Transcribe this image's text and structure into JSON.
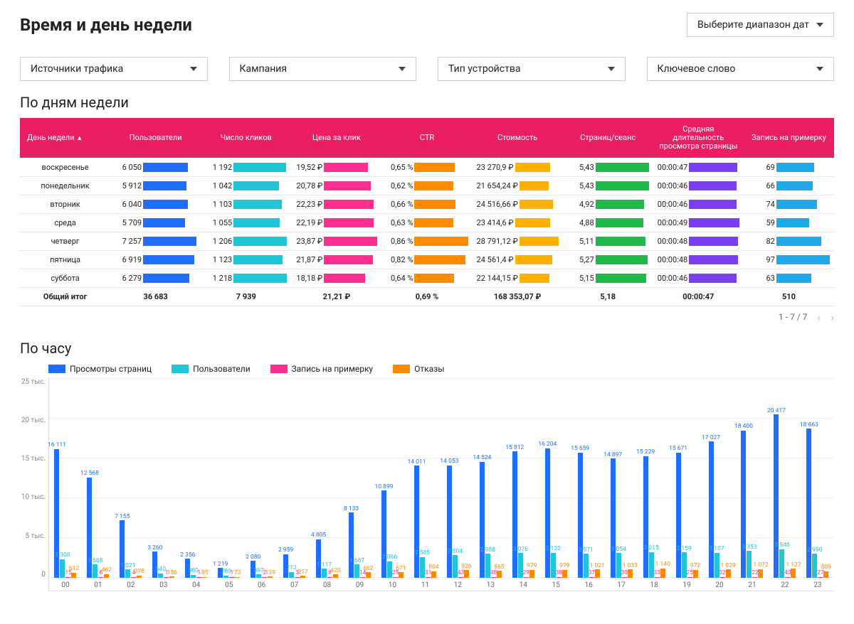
{
  "page_title": "Время и день недели",
  "date_picker_label": "Выберите диапазон дат",
  "filters": [
    {
      "label": "Источники трафика"
    },
    {
      "label": "Кампания"
    },
    {
      "label": "Тип устройства"
    },
    {
      "label": "Ключевое слово"
    }
  ],
  "week_section": {
    "title": "По дням недели",
    "header_bg": "#e91e63",
    "columns": [
      "День недели",
      "Пользователи",
      "Число кликов",
      "Цена за клик",
      "CTR",
      "Стоимость",
      "Страниц/сеанс",
      "Средняя длительность просмотра страницы",
      "Запись на примерку"
    ],
    "col_colors": [
      null,
      "#1e6fff",
      "#1fc6d6",
      "#ff2f92",
      "#ff8a00",
      "#ffb100",
      "#1fb94a",
      "#7b3ff0",
      "#1fa9e8"
    ],
    "col_max": [
      null,
      7257,
      1218,
      23.87,
      0.86,
      28791.12,
      5.43,
      49,
      97
    ],
    "rows": [
      {
        "day": "воскресенье",
        "values": [
          "6 050",
          "1 192",
          "19,52 ₽",
          "0,65 %",
          "23 270,9 ₽",
          "5,43",
          "00:00:47",
          "69"
        ],
        "raw": [
          6050,
          1192,
          19.52,
          0.65,
          23270.9,
          5.43,
          47,
          69
        ]
      },
      {
        "day": "понедельник",
        "values": [
          "5 912",
          "1 042",
          "20,78 ₽",
          "0,62 %",
          "21 654,24 ₽",
          "5,43",
          "00:00:46",
          "66"
        ],
        "raw": [
          5912,
          1042,
          20.78,
          0.62,
          21654.24,
          5.43,
          46,
          66
        ]
      },
      {
        "day": "вторник",
        "values": [
          "6 040",
          "1 103",
          "22,23 ₽",
          "0,66 %",
          "24 516,66 ₽",
          "4,92",
          "00:00:46",
          "74"
        ],
        "raw": [
          6040,
          1103,
          22.23,
          0.66,
          24516.66,
          4.92,
          46,
          74
        ]
      },
      {
        "day": "среда",
        "values": [
          "5 709",
          "1 055",
          "22,19 ₽",
          "0,63 %",
          "23 414,6 ₽",
          "4,88",
          "00:00:49",
          "59"
        ],
        "raw": [
          5709,
          1055,
          22.19,
          0.63,
          23414.6,
          4.88,
          49,
          59
        ]
      },
      {
        "day": "четверг",
        "values": [
          "7 257",
          "1 206",
          "23,87 ₽",
          "0,86 %",
          "28 791,12 ₽",
          "5,11",
          "00:00:48",
          "82"
        ],
        "raw": [
          7257,
          1206,
          23.87,
          0.86,
          28791.12,
          5.11,
          48,
          82
        ]
      },
      {
        "day": "пятница",
        "values": [
          "6 919",
          "1 123",
          "21,87 ₽",
          "0,82 %",
          "24 561,4 ₽",
          "5,27",
          "00:00:48",
          "97"
        ],
        "raw": [
          6919,
          1123,
          21.87,
          0.82,
          24561.4,
          5.27,
          48,
          97
        ]
      },
      {
        "day": "суббота",
        "values": [
          "6 279",
          "1 218",
          "18,18 ₽",
          "0,64 %",
          "22 144,15 ₽",
          "5,15",
          "00:00:46",
          "63"
        ],
        "raw": [
          6279,
          1218,
          18.18,
          0.64,
          22144.15,
          5.15,
          46,
          63
        ]
      }
    ],
    "totals_label": "Общий итог",
    "totals": [
      "36 683",
      "7 939",
      "21,21 ₽",
      "0,69 %",
      "168 353,07 ₽",
      "5,18",
      "00:00:47",
      "510"
    ],
    "pager": "1 - 7 / 7"
  },
  "hourly_section": {
    "title": "По часу",
    "legend": [
      {
        "label": "Просмотры страниц",
        "color": "#1e6fff"
      },
      {
        "label": "Пользователи",
        "color": "#1fc6d6"
      },
      {
        "label": "Запись на примерку",
        "color": "#ff2f92"
      },
      {
        "label": "Отказы",
        "color": "#ff8a00"
      }
    ],
    "ylim": 25000,
    "yticks": [
      "25 тыс.",
      "20 тыс.",
      "15 тыс.",
      "10 тыс.",
      "5 тыс.",
      "0"
    ],
    "grid_color": "#eeeeee",
    "series_colors": [
      "#1e6fff",
      "#1fc6d6",
      "#ff2f92",
      "#ff8a00"
    ],
    "hours": [
      {
        "h": "00",
        "pv": 16111,
        "u": 2308,
        "f": 15,
        "b": 612,
        "pv_l": "16 111",
        "u_l": "2 308",
        "f_l": "15",
        "b_l": "612"
      },
      {
        "h": "01",
        "pv": 12568,
        "u": 1668,
        "f": 6,
        "b": 462,
        "pv_l": "12 568",
        "u_l": "1 668",
        "f_l": "6",
        "b_l": "462"
      },
      {
        "h": "02",
        "pv": 7155,
        "u": 1021,
        "f": 4,
        "b": 278,
        "pv_l": "7 155",
        "u_l": "1 021",
        "f_l": "4",
        "b_l": "278"
      },
      {
        "h": "03",
        "pv": 3260,
        "u": 540,
        "f": 1,
        "b": 156,
        "pv_l": "3 260",
        "u_l": "540",
        "f_l": "1",
        "b_l": "156"
      },
      {
        "h": "04",
        "pv": 2356,
        "u": 380,
        "f": 1,
        "b": 95,
        "pv_l": "2 356",
        "u_l": "380",
        "f_l": "1",
        "b_l": "95"
      },
      {
        "h": "05",
        "pv": 1219,
        "u": 280,
        "f": 1,
        "b": 73,
        "pv_l": "1 219",
        "u_l": "280",
        "f_l": "1",
        "b_l": "73"
      },
      {
        "h": "06",
        "pv": 2080,
        "u": 397,
        "f": 2,
        "b": 139,
        "pv_l": "2 080",
        "u_l": "397",
        "f_l": "2",
        "b_l": "139"
      },
      {
        "h": "07",
        "pv": 2959,
        "u": 713,
        "f": 3,
        "b": 217,
        "pv_l": "2 959",
        "u_l": "713",
        "f_l": "3",
        "b_l": "217"
      },
      {
        "h": "08",
        "pv": 4805,
        "u": 1117,
        "f": 8,
        "b": 420,
        "pv_l": "4 805",
        "u_l": "1 117",
        "f_l": "8",
        "b_l": "420"
      },
      {
        "h": "09",
        "pv": 8133,
        "u": 1667,
        "f": 14,
        "b": 662,
        "pv_l": "8 133",
        "u_l": "1 667",
        "f_l": "14",
        "b_l": "662"
      },
      {
        "h": "10",
        "pv": 10899,
        "u": 2066,
        "f": 25,
        "b": 671,
        "pv_l": "10 899",
        "u_l": "2 066",
        "f_l": "25",
        "b_l": "671"
      },
      {
        "h": "11",
        "pv": 14011,
        "u": 2585,
        "f": 31,
        "b": 804,
        "pv_l": "14 011",
        "u_l": "2 585",
        "f_l": "31",
        "b_l": "804"
      },
      {
        "h": "12",
        "pv": 14053,
        "u": 2804,
        "f": 43,
        "b": 926,
        "pv_l": "14 053",
        "u_l": "2 804",
        "f_l": "43",
        "b_l": "926"
      },
      {
        "h": "13",
        "pv": 14524,
        "u": 2988,
        "f": 48,
        "b": 865,
        "pv_l": "14 524",
        "u_l": "2 988",
        "f_l": "48",
        "b_l": "865"
      },
      {
        "h": "14",
        "pv": 15812,
        "u": 3076,
        "f": 29,
        "b": 979,
        "pv_l": "15 812",
        "u_l": "3 076",
        "f_l": "29",
        "b_l": "979"
      },
      {
        "h": "15",
        "pv": 16204,
        "u": 3132,
        "f": 38,
        "b": 979,
        "pv_l": "16 204",
        "u_l": "3 132",
        "f_l": "38",
        "b_l": "979"
      },
      {
        "h": "16",
        "pv": 15659,
        "u": 2971,
        "f": 37,
        "b": 1021,
        "pv_l": "15 659",
        "u_l": "2 971",
        "f_l": "37",
        "b_l": "1 021"
      },
      {
        "h": "17",
        "pv": 14897,
        "u": 3054,
        "f": 30,
        "b": 1033,
        "pv_l": "14 897",
        "u_l": "3 054",
        "f_l": "30",
        "b_l": "1 033"
      },
      {
        "h": "18",
        "pv": 15229,
        "u": 3215,
        "f": 33,
        "b": 1140,
        "pv_l": "15 229",
        "u_l": "3 215",
        "f_l": "33",
        "b_l": "1 140"
      },
      {
        "h": "19",
        "pv": 15671,
        "u": 3159,
        "f": 25,
        "b": 972,
        "pv_l": "15 671",
        "u_l": "3 159",
        "f_l": "25",
        "b_l": "972"
      },
      {
        "h": "20",
        "pv": 17027,
        "u": 3107,
        "f": 32,
        "b": 1029,
        "pv_l": "17 027",
        "u_l": "3 107",
        "f_l": "32",
        "b_l": "1 029"
      },
      {
        "h": "21",
        "pv": 18400,
        "u": 3353,
        "f": 22,
        "b": 1072,
        "pv_l": "18 400",
        "u_l": "3 353",
        "f_l": "22",
        "b_l": "1 072"
      },
      {
        "h": "22",
        "pv": 20417,
        "u": 3548,
        "f": 43,
        "b": 1127,
        "pv_l": "20 417",
        "u_l": "3 548",
        "f_l": "43",
        "b_l": "1 127"
      },
      {
        "h": "23",
        "pv": 18663,
        "u": 2990,
        "f": 27,
        "b": 809,
        "pv_l": "18 663",
        "u_l": "2 990",
        "f_l": "27",
        "b_l": "809"
      }
    ]
  }
}
